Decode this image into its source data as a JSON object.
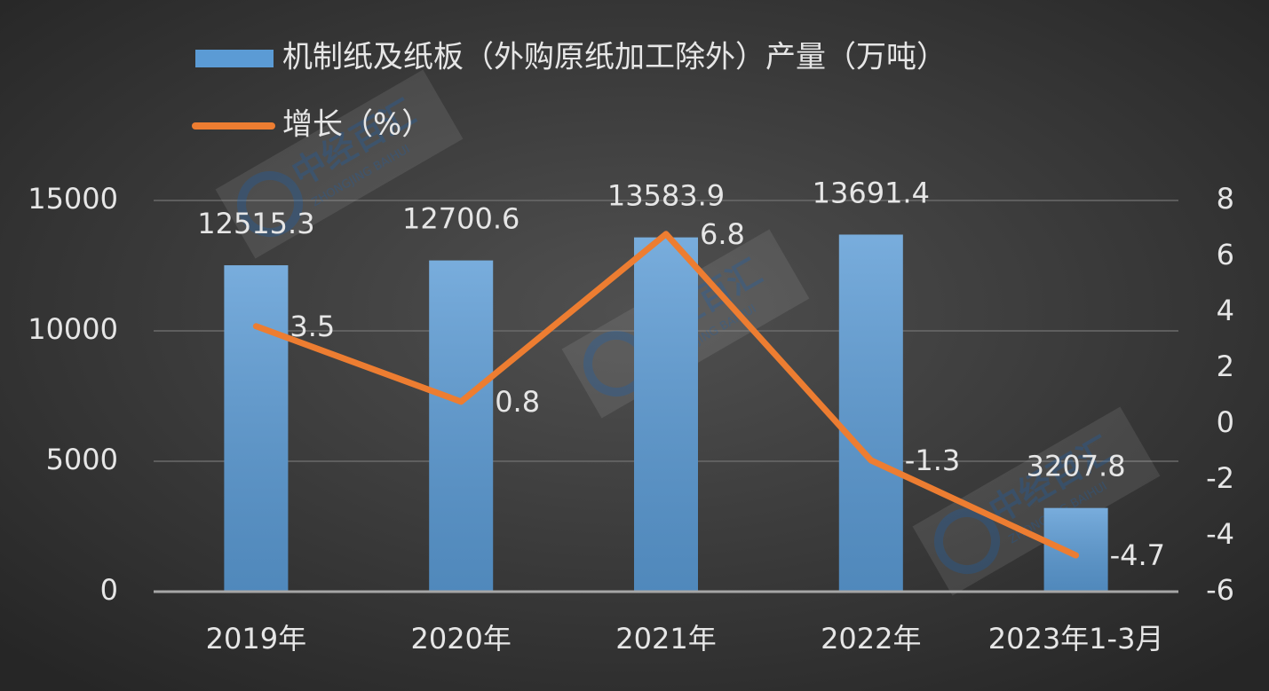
{
  "chart_data": {
    "type": "bar",
    "categories": [
      "2019年",
      "2020年",
      "2021年",
      "2022年",
      "2023年1-3月"
    ],
    "series": [
      {
        "name": "机制纸及纸板（外购原纸加工除外）产量（万吨）",
        "color": "#5b9bd5",
        "type": "bar",
        "axis": "y",
        "values": [
          12515.3,
          12700.6,
          13583.9,
          13691.4,
          3207.8
        ]
      },
      {
        "name": "增长（%）",
        "color": "#ed7d31",
        "type": "line",
        "axis": "y2",
        "values": [
          3.5,
          0.8,
          6.8,
          -1.3,
          -4.7
        ]
      }
    ],
    "ylim": [
      0,
      15000
    ],
    "yticks": [
      0,
      5000,
      10000,
      15000
    ],
    "y2lim": [
      -6,
      8
    ],
    "y2ticks": [
      -6,
      -4,
      -2,
      0,
      2,
      4,
      6,
      8
    ],
    "grid": true,
    "legend": "top-left",
    "watermark": {
      "text": "中经百汇",
      "subtext": "ZHONGJING BAIHUI"
    }
  }
}
